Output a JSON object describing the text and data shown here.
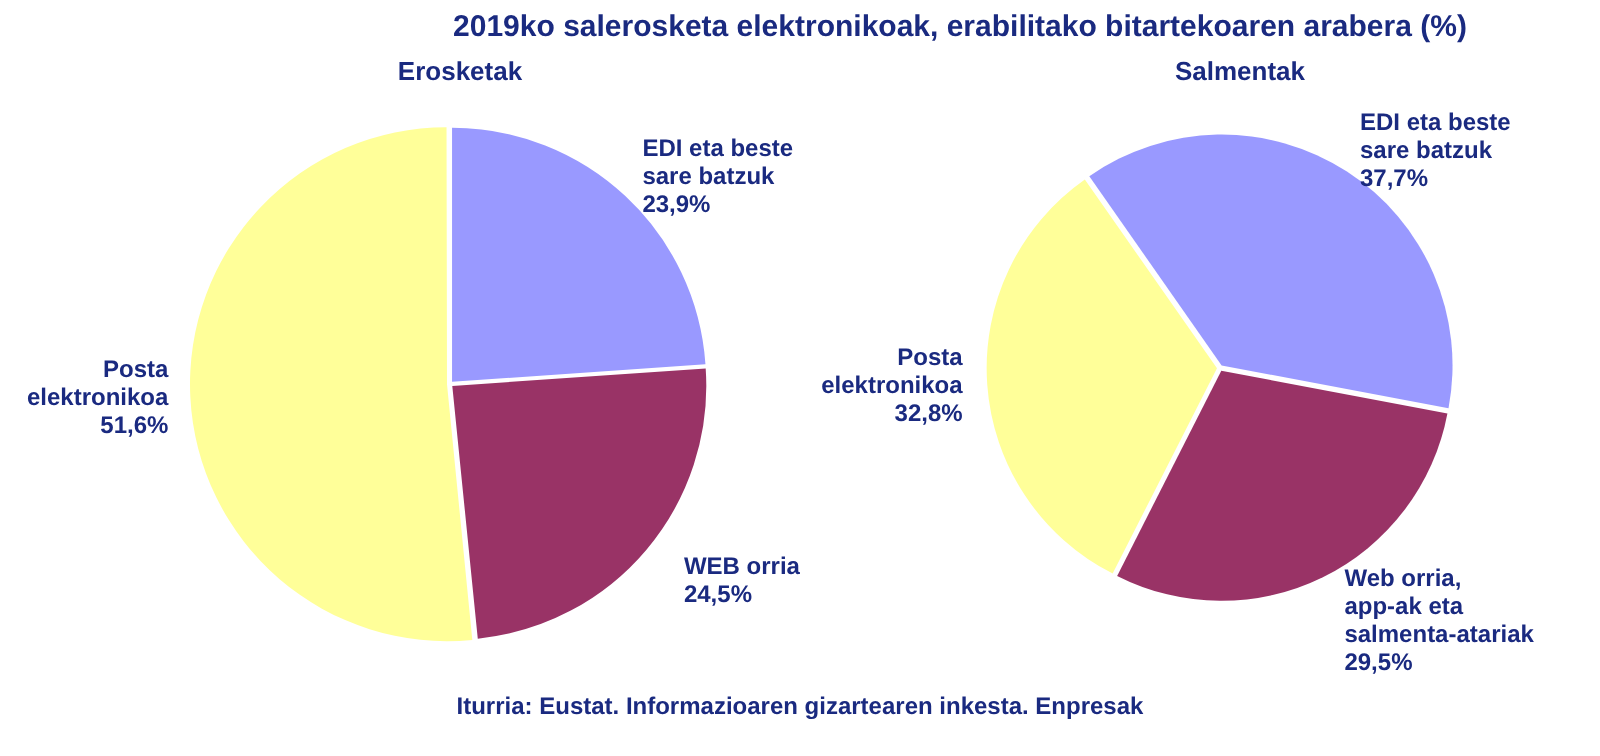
{
  "chart_data": [
    {
      "type": "pie",
      "title": "2019ko salerosketa elektronikoak, erabilitako bitartekoaren arabera (%)",
      "subtitle": "Erosketak",
      "annotations": [
        "Iturria: Eustat. Informazioaren gizartearen inkesta. Enpresak"
      ],
      "categories": [
        "EDI eta beste sare batzuk",
        "WEB orria",
        "Posta elektronikoa"
      ],
      "values": [
        23.9,
        24.5,
        51.6
      ],
      "value_labels": [
        "23,9%",
        "24,5%",
        "51,6%"
      ],
      "colors": [
        "#9999ff",
        "#993366",
        "#ffff99"
      ]
    },
    {
      "type": "pie",
      "subtitle": "Salmentak",
      "categories": [
        "EDI eta beste sare batzuk",
        "Web orria, app-ak eta salmenta-atariak",
        "Posta elektronikoa"
      ],
      "values": [
        37.7,
        29.5,
        32.8
      ],
      "value_labels": [
        "37,7%",
        "29,5%",
        "32,8%"
      ],
      "colors": [
        "#9999ff",
        "#993366",
        "#ffff99"
      ]
    }
  ]
}
